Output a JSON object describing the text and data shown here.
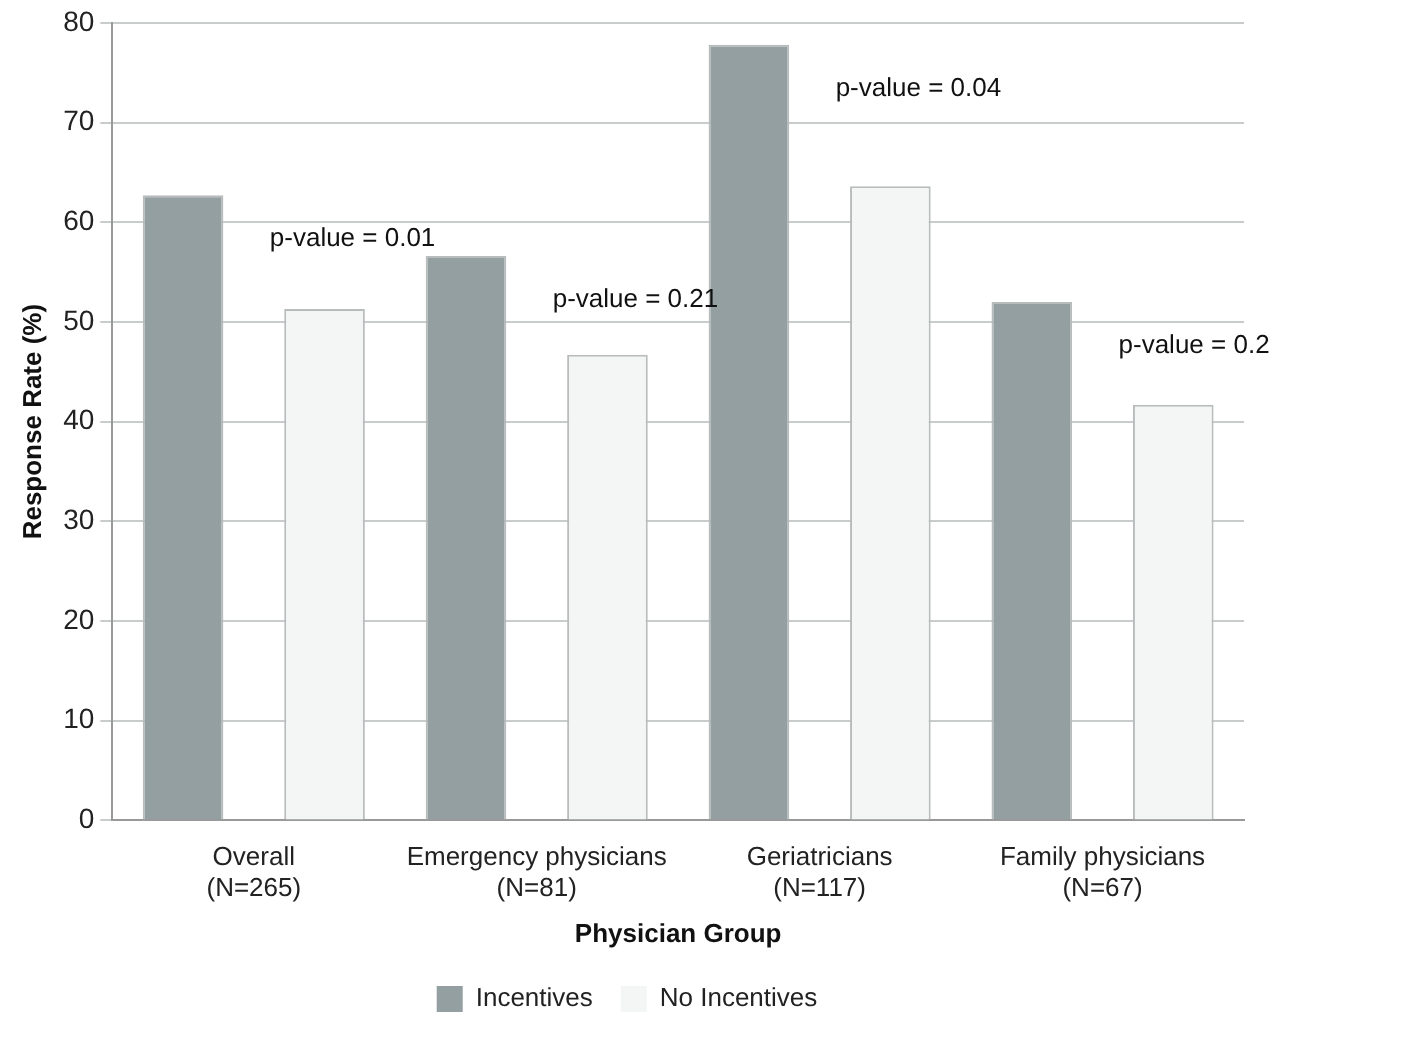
{
  "chart_data": {
    "type": "bar",
    "xlabel": "Physician Group",
    "ylabel": "Response Rate (%)",
    "categories": [
      "Overall\n(N=265)",
      "Emergency physicians\n(N=81)",
      "Geriatricians\n(N=117)",
      "Family physicians\n(N=67)"
    ],
    "series": [
      {
        "name": "Incentives",
        "color": "#949fa1",
        "values": [
          62.7,
          56.6,
          77.8,
          52.0
        ]
      },
      {
        "name": "No Incentives",
        "color": "#f4f6f6",
        "values": [
          51.3,
          46.7,
          63.6,
          41.7
        ]
      }
    ],
    "ylim": [
      0,
      80
    ],
    "yticks": [
      0,
      10,
      20,
      30,
      40,
      50,
      60,
      70,
      80
    ],
    "grid": "y",
    "legend": "bottom",
    "annotations": [
      "p-value = 0.01",
      "p-value = 0.21",
      "p-value = 0.04",
      "p-value = 0.2"
    ]
  }
}
